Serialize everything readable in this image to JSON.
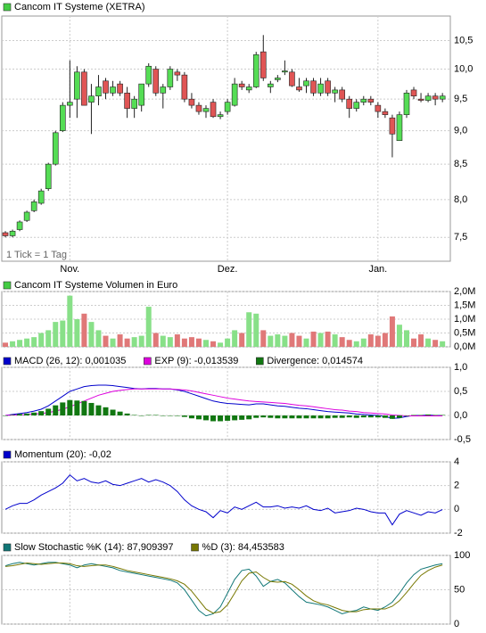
{
  "chart_data": [
    {
      "type": "candlestick",
      "title": "Cancom IT Systeme (XETRA)",
      "title_color": "#44cc44",
      "annotation": "1 Tick = 1 Tag",
      "log_scale": true,
      "grid": true,
      "up_color": "#55dd55",
      "down_color": "#e05555",
      "ylim": [
        7.2,
        10.95
      ],
      "yticks": [
        {
          "value": 7.5,
          "label": "7,5"
        },
        {
          "value": 8,
          "label": "8,0"
        },
        {
          "value": 8.5,
          "label": "8,5"
        },
        {
          "value": 9,
          "label": "9,0"
        },
        {
          "value": 9.5,
          "label": "9,5"
        },
        {
          "value": 10,
          "label": "10,0"
        },
        {
          "value": 10.5,
          "label": "10,5"
        }
      ],
      "xlim": [
        -0.5,
        62.1
      ],
      "xticks": [
        {
          "value": 9,
          "label": "Nov."
        },
        {
          "value": 31,
          "label": "Dez."
        },
        {
          "value": 52,
          "label": "Jan."
        }
      ],
      "open": [
        7.56,
        7.52,
        7.6,
        7.72,
        7.85,
        7.95,
        8.15,
        8.5,
        9.0,
        9.4,
        9.5,
        9.95,
        9.45,
        9.55,
        9.8,
        9.6,
        9.75,
        9.6,
        9.35,
        9.4,
        9.75,
        10.0,
        9.6,
        9.7,
        9.95,
        9.9,
        9.5,
        9.4,
        9.3,
        9.45,
        9.22,
        9.3,
        9.4,
        9.75,
        9.65,
        9.7,
        10.3,
        9.7,
        9.82,
        9.95,
        9.95,
        9.7,
        9.72,
        9.8,
        9.6,
        9.8,
        9.6,
        9.65,
        9.5,
        9.35,
        9.45,
        9.5,
        9.4,
        9.3,
        9.2,
        8.85,
        9.25,
        9.65,
        9.5,
        9.48,
        9.55,
        9.5
      ],
      "high": [
        7.58,
        7.6,
        7.72,
        7.85,
        8.0,
        8.15,
        8.52,
        9.0,
        9.45,
        10.15,
        10.05,
        10.0,
        9.75,
        9.9,
        9.85,
        9.8,
        9.8,
        9.7,
        9.55,
        9.75,
        10.1,
        10.05,
        9.75,
        10.05,
        10.0,
        9.95,
        9.6,
        9.45,
        9.4,
        9.5,
        9.3,
        9.5,
        9.85,
        9.8,
        9.75,
        10.3,
        10.6,
        9.8,
        9.9,
        10.15,
        10.0,
        9.85,
        9.85,
        9.85,
        9.85,
        9.85,
        9.7,
        9.7,
        9.55,
        9.5,
        9.55,
        9.55,
        9.45,
        9.35,
        9.25,
        9.3,
        9.65,
        9.7,
        9.6,
        9.6,
        9.6,
        9.6
      ],
      "low": [
        7.5,
        7.5,
        7.58,
        7.7,
        7.83,
        7.93,
        8.12,
        8.48,
        8.98,
        9.2,
        9.2,
        9.4,
        8.95,
        9.4,
        9.5,
        9.55,
        9.55,
        9.2,
        9.2,
        9.3,
        9.7,
        9.55,
        9.35,
        9.65,
        9.8,
        9.45,
        9.35,
        9.25,
        9.2,
        9.2,
        9.18,
        9.25,
        9.38,
        9.65,
        9.6,
        9.68,
        9.8,
        9.6,
        9.78,
        9.9,
        9.7,
        9.62,
        9.6,
        9.55,
        9.55,
        9.55,
        9.45,
        9.45,
        9.2,
        9.3,
        9.4,
        9.4,
        9.2,
        9.2,
        8.6,
        8.85,
        9.2,
        9.5,
        9.45,
        9.45,
        9.4,
        9.45
      ],
      "close": [
        7.52,
        7.58,
        7.7,
        7.83,
        7.97,
        8.12,
        8.5,
        8.97,
        9.4,
        9.45,
        9.95,
        9.4,
        9.55,
        9.7,
        9.6,
        9.7,
        9.6,
        9.35,
        9.5,
        9.75,
        10.05,
        9.6,
        9.7,
        10.0,
        9.9,
        9.5,
        9.4,
        9.3,
        9.35,
        9.22,
        9.25,
        9.45,
        9.75,
        9.7,
        9.7,
        10.25,
        9.85,
        9.75,
        9.85,
        9.97,
        9.72,
        9.65,
        9.8,
        9.6,
        9.75,
        9.6,
        9.65,
        9.5,
        9.35,
        9.45,
        9.5,
        9.45,
        9.3,
        9.25,
        8.95,
        9.25,
        9.6,
        9.55,
        9.48,
        9.55,
        9.5,
        9.55
      ]
    },
    {
      "type": "bar",
      "title": "Cancom IT Systeme Volumen in Euro",
      "title_color": "#44cc44",
      "grid": true,
      "up_color": "#88e088",
      "down_color": "#e07878",
      "ylim": [
        0,
        2000000
      ],
      "yticks": [
        {
          "value": 0,
          "label": "0,0M"
        },
        {
          "value": 500000,
          "label": "0,5M"
        },
        {
          "value": 1000000,
          "label": "1,0M"
        },
        {
          "value": 1500000,
          "label": "1,5M"
        },
        {
          "value": 2000000,
          "label": "2,0M"
        }
      ],
      "values": [
        150000,
        200000,
        250000,
        300000,
        350000,
        500000,
        600000,
        900000,
        950000,
        1850000,
        1000000,
        1200000,
        900000,
        600000,
        400000,
        300000,
        450000,
        300000,
        350000,
        400000,
        1450000,
        500000,
        400000,
        350000,
        450000,
        300000,
        350000,
        300000,
        250000,
        200000,
        150000,
        300000,
        600000,
        500000,
        1250000,
        1200000,
        600000,
        400000,
        450000,
        400000,
        500000,
        400000,
        300000,
        550000,
        500000,
        550000,
        450000,
        350000,
        250000,
        200000,
        300000,
        450000,
        400000,
        500000,
        1100000,
        800000,
        600000,
        300000,
        450000,
        300000,
        250000,
        200000
      ]
    },
    {
      "type": "line",
      "grid": true,
      "ylim": [
        -0.5,
        1.0
      ],
      "yticks": [
        {
          "value": -0.5,
          "label": "-0,5"
        },
        {
          "value": 0,
          "label": "0,0"
        },
        {
          "value": 0.5,
          "label": "0,5"
        },
        {
          "value": 1.0,
          "label": "1,0"
        }
      ],
      "series": [
        {
          "name": "MACD (26, 12): 0,001035",
          "color": "#0000cc",
          "values": [
            0,
            0.02,
            0.04,
            0.06,
            0.09,
            0.13,
            0.2,
            0.3,
            0.4,
            0.5,
            0.55,
            0.6,
            0.62,
            0.63,
            0.63,
            0.62,
            0.6,
            0.58,
            0.56,
            0.55,
            0.56,
            0.56,
            0.55,
            0.55,
            0.53,
            0.5,
            0.45,
            0.4,
            0.35,
            0.3,
            0.27,
            0.25,
            0.24,
            0.23,
            0.22,
            0.24,
            0.24,
            0.22,
            0.2,
            0.19,
            0.17,
            0.15,
            0.14,
            0.12,
            0.1,
            0.08,
            0.07,
            0.06,
            0.05,
            0.03,
            0.02,
            0.01,
            0,
            -0.02,
            -0.06,
            -0.05,
            -0.02,
            0,
            0,
            0.01,
            0,
            0
          ]
        },
        {
          "name": "EXP (9): -0,013539",
          "color": "#dd00dd",
          "values": [
            0,
            0.01,
            0.01,
            0.02,
            0.03,
            0.04,
            0.06,
            0.09,
            0.13,
            0.18,
            0.24,
            0.3,
            0.36,
            0.42,
            0.46,
            0.5,
            0.52,
            0.54,
            0.55,
            0.55,
            0.55,
            0.55,
            0.55,
            0.55,
            0.54,
            0.53,
            0.51,
            0.48,
            0.45,
            0.42,
            0.39,
            0.36,
            0.34,
            0.32,
            0.3,
            0.29,
            0.28,
            0.27,
            0.26,
            0.25,
            0.23,
            0.21,
            0.2,
            0.18,
            0.16,
            0.14,
            0.12,
            0.11,
            0.09,
            0.08,
            0.06,
            0.05,
            0.04,
            0.03,
            0.01,
            0,
            -0.01,
            -0.01,
            -0.01,
            -0.01,
            -0.01,
            -0.01
          ]
        },
        {
          "name": "Divergence: 0,014574",
          "color": "#117711",
          "style": "bar",
          "values": [
            0,
            0.01,
            0.03,
            0.04,
            0.06,
            0.09,
            0.14,
            0.21,
            0.27,
            0.32,
            0.31,
            0.3,
            0.26,
            0.21,
            0.17,
            0.12,
            0.08,
            0.04,
            0.01,
            0,
            0.01,
            0.01,
            0,
            0,
            -0.01,
            -0.03,
            -0.06,
            -0.08,
            -0.1,
            -0.12,
            -0.12,
            -0.11,
            -0.1,
            -0.09,
            -0.08,
            -0.05,
            -0.04,
            -0.05,
            -0.06,
            -0.06,
            -0.06,
            -0.06,
            -0.06,
            -0.06,
            -0.06,
            -0.06,
            -0.05,
            -0.05,
            -0.04,
            -0.05,
            -0.04,
            -0.04,
            -0.04,
            -0.05,
            -0.07,
            -0.05,
            -0.01,
            0.01,
            0.01,
            0.02,
            0.01,
            0.01
          ]
        }
      ]
    },
    {
      "type": "line",
      "grid": true,
      "ylim": [
        -2,
        4
      ],
      "yticks": [
        -2,
        0,
        2,
        4
      ],
      "series": [
        {
          "name": "Momentum (20): -0,02",
          "color": "#0000cc",
          "values": [
            0,
            0.3,
            0.5,
            0.5,
            0.8,
            1.2,
            1.5,
            1.8,
            2.2,
            2.9,
            2.4,
            2.6,
            2.3,
            2.2,
            2.4,
            2.1,
            2.0,
            2.2,
            2.4,
            2.6,
            2.3,
            2.5,
            2.3,
            2.0,
            1.5,
            0.8,
            0.3,
            0,
            -0.2,
            -0.7,
            -0.1,
            -0.3,
            0.2,
            0,
            0.3,
            0.6,
            0.2,
            0.2,
            0.3,
            0.1,
            0.2,
            0.1,
            0.3,
            0,
            -0.1,
            0.1,
            -0.3,
            -0.2,
            -0.1,
            0.1,
            0,
            -0.2,
            -0.3,
            -0.3,
            -1.3,
            -0.4,
            -0.1,
            -0.3,
            -0.5,
            -0.2,
            -0.3,
            -0.02
          ]
        }
      ]
    },
    {
      "type": "line",
      "grid": true,
      "ylim": [
        0,
        100
      ],
      "yticks": [
        0,
        50,
        100
      ],
      "series": [
        {
          "name": "Slow Stochastic %K (14): 87,909397",
          "color": "#117777",
          "values": [
            85,
            88,
            90,
            88,
            86,
            88,
            90,
            90,
            88,
            86,
            82,
            86,
            88,
            86,
            84,
            82,
            78,
            76,
            74,
            72,
            70,
            68,
            66,
            64,
            60,
            50,
            35,
            20,
            12,
            15,
            25,
            45,
            65,
            78,
            80,
            70,
            55,
            62,
            65,
            60,
            50,
            40,
            32,
            30,
            28,
            25,
            20,
            15,
            18,
            20,
            25,
            22,
            20,
            25,
            32,
            45,
            60,
            72,
            80,
            83,
            86,
            88
          ]
        },
        {
          "name": "%D (3): 84,453583",
          "color": "#777700",
          "values": [
            84,
            85,
            87,
            89,
            88,
            87,
            88,
            89,
            89,
            88,
            85,
            84,
            85,
            86,
            86,
            84,
            81,
            78,
            76,
            74,
            72,
            70,
            68,
            66,
            63,
            58,
            48,
            35,
            22,
            16,
            18,
            28,
            45,
            63,
            74,
            76,
            68,
            62,
            61,
            62,
            58,
            50,
            41,
            34,
            30,
            28,
            24,
            20,
            18,
            18,
            21,
            22,
            22,
            22,
            26,
            34,
            46,
            59,
            71,
            78,
            83,
            86
          ]
        }
      ]
    }
  ]
}
